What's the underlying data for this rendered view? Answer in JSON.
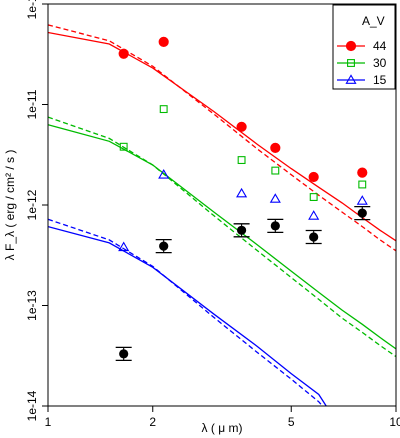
{
  "chart_data": {
    "type": "scatter",
    "x_scale": "log",
    "y_scale": "log",
    "xlim": [
      1,
      10
    ],
    "ylim": [
      1e-14,
      1e-10
    ],
    "xlabel": "λ ( μ m)",
    "ylabel": "λ F_λ ( erg / cm² / s )",
    "x_ticks": [
      {
        "value": 1,
        "label": "1"
      },
      {
        "value": 2,
        "label": "2"
      },
      {
        "value": 5,
        "label": "5"
      },
      {
        "value": 10,
        "label": "10"
      }
    ],
    "y_ticks": [
      {
        "value": 1e-14,
        "label": "1e-14"
      },
      {
        "value": 1e-13,
        "label": "1e-13"
      },
      {
        "value": 1e-12,
        "label": "1e-12"
      },
      {
        "value": 1e-11,
        "label": "1e-11"
      },
      {
        "value": 1e-10,
        "label": "1e-10"
      }
    ],
    "legend": {
      "title": "A_V",
      "placement": "top-right",
      "entries": [
        "44",
        "30",
        "15"
      ]
    },
    "series": [
      {
        "name": "44",
        "color": "#ff0000",
        "marker": "filled-circle",
        "points": [
          [
            1.65,
            3.2e-11
          ],
          [
            2.15,
            4.2e-11
          ],
          [
            3.6,
            6e-12
          ],
          [
            4.5,
            3.7e-12
          ],
          [
            5.8,
            1.9e-12
          ],
          [
            8.0,
            2.1e-12
          ]
        ],
        "model_solid": [
          [
            1.0,
            5.2e-11
          ],
          [
            1.5,
            4e-11
          ],
          [
            2.0,
            2.3e-11
          ],
          [
            3.0,
            8.5e-12
          ],
          [
            4.0,
            4e-12
          ],
          [
            5.0,
            2.3e-12
          ],
          [
            6.0,
            1.5e-12
          ],
          [
            7.0,
            1.05e-12
          ],
          [
            8.0,
            7.5e-13
          ],
          [
            9.0,
            5.6e-13
          ],
          [
            10.0,
            4.4e-13
          ]
        ],
        "model_dashed": [
          [
            1.0,
            6.2e-11
          ],
          [
            1.5,
            4.3e-11
          ],
          [
            2.0,
            2.4e-11
          ],
          [
            3.0,
            8e-12
          ],
          [
            4.0,
            3.6e-12
          ],
          [
            5.0,
            2e-12
          ],
          [
            6.0,
            1.25e-12
          ],
          [
            7.0,
            8.5e-13
          ],
          [
            8.0,
            6.1e-13
          ],
          [
            9.0,
            4.5e-13
          ],
          [
            10.0,
            3.5e-13
          ]
        ]
      },
      {
        "name": "30",
        "color": "#00bb00",
        "marker": "open-square",
        "points": [
          [
            1.65,
            3.8e-12
          ],
          [
            2.15,
            9e-12
          ],
          [
            3.6,
            2.8e-12
          ],
          [
            4.5,
            2.2e-12
          ],
          [
            5.8,
            1.2e-12
          ],
          [
            8.0,
            1.6e-12
          ]
        ],
        "model_solid": [
          [
            1.0,
            6.3e-12
          ],
          [
            1.5,
            4.3e-12
          ],
          [
            2.0,
            2.5e-12
          ],
          [
            3.0,
            8.5e-13
          ],
          [
            4.0,
            4e-13
          ],
          [
            5.0,
            2.2e-13
          ],
          [
            6.0,
            1.35e-13
          ],
          [
            7.0,
            9e-14
          ],
          [
            8.0,
            6.5e-14
          ],
          [
            9.0,
            4.8e-14
          ],
          [
            10.0,
            3.7e-14
          ]
        ],
        "model_dashed": [
          [
            1.0,
            7.5e-12
          ],
          [
            1.5,
            4.6e-12
          ],
          [
            2.0,
            2.5e-12
          ],
          [
            3.0,
            7.8e-13
          ],
          [
            4.0,
            3.5e-13
          ],
          [
            5.0,
            1.9e-13
          ],
          [
            6.0,
            1.15e-13
          ],
          [
            7.0,
            7.5e-14
          ],
          [
            8.0,
            5.4e-14
          ],
          [
            9.0,
            4e-14
          ],
          [
            10.0,
            3.1e-14
          ]
        ]
      },
      {
        "name": "15",
        "color": "#0000ff",
        "marker": "open-triangle",
        "points": [
          [
            1.65,
            3.8e-13
          ],
          [
            2.15,
            2e-12
          ],
          [
            3.6,
            1.3e-12
          ],
          [
            4.5,
            1.15e-12
          ],
          [
            5.8,
            7.8e-13
          ],
          [
            8.0,
            1.1e-12
          ]
        ],
        "model_solid": [
          [
            1.0,
            6.1e-13
          ],
          [
            1.5,
            4.2e-13
          ],
          [
            2.0,
            2.4e-13
          ],
          [
            3.0,
            8.2e-14
          ],
          [
            4.0,
            3.9e-14
          ],
          [
            5.0,
            2.1e-14
          ],
          [
            6.0,
            1.3e-14
          ],
          [
            6.3,
            1e-14
          ]
        ],
        "model_dashed": [
          [
            1.0,
            7.2e-13
          ],
          [
            1.5,
            4.5e-13
          ],
          [
            2.0,
            2.45e-13
          ],
          [
            3.0,
            7.6e-14
          ],
          [
            4.0,
            3.4e-14
          ],
          [
            5.0,
            1.85e-14
          ],
          [
            6.0,
            1.1e-14
          ],
          [
            6.15,
            1e-14
          ]
        ]
      }
    ],
    "observed": {
      "color": "#000000",
      "marker": "filled-circle-errorbar",
      "points": [
        [
          1.65,
          3.3e-14
        ],
        [
          2.15,
          3.9e-13
        ],
        [
          3.6,
          5.6e-13
        ],
        [
          4.5,
          6.2e-13
        ],
        [
          5.8,
          4.8e-13
        ],
        [
          8.0,
          8.3e-13
        ]
      ]
    }
  }
}
